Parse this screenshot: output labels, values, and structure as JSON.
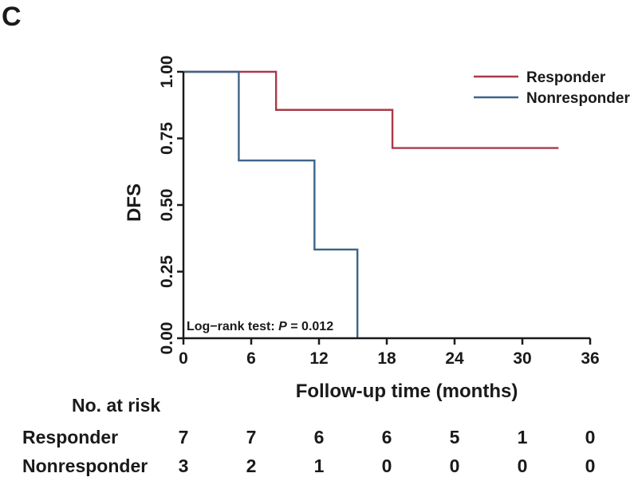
{
  "panel_label": "C",
  "chart_data": {
    "type": "line",
    "subtype": "kaplan-meier step curve",
    "title": "",
    "xlabel": "Follow-up time (months)",
    "ylabel": "DFS",
    "xlim": [
      0,
      36
    ],
    "ylim": [
      0,
      1
    ],
    "x_ticks": [
      0,
      6,
      12,
      18,
      24,
      30,
      36
    ],
    "x_tick_labels": [
      "0",
      "6",
      "12",
      "18",
      "24",
      "30",
      "36"
    ],
    "y_ticks": [
      0,
      0.25,
      0.5,
      0.75,
      1.0
    ],
    "y_tick_labels": [
      "0.00",
      "0.25",
      "0.50",
      "0.75",
      "1.00"
    ],
    "grid": false,
    "legend_position": "top-right",
    "series": [
      {
        "name": "Responder",
        "color": "#a83a4a",
        "x": [
          0,
          8.2,
          18.5,
          33.2
        ],
        "y": [
          1.0,
          0.857,
          0.714,
          0.714
        ]
      },
      {
        "name": "Nonresponder",
        "color": "#3d6489",
        "x": [
          0,
          4.9,
          11.6,
          15.4
        ],
        "y": [
          1.0,
          0.667,
          0.333,
          0.0
        ]
      }
    ],
    "annotation": {
      "prefix": "Log−rank test: ",
      "p_symbol": "P",
      "suffix": " = 0.012"
    },
    "risk_table": {
      "title": "No. at risk",
      "rows": [
        {
          "name": "Responder",
          "values": [
            "7",
            "7",
            "6",
            "6",
            "5",
            "1",
            "0"
          ]
        },
        {
          "name": "Nonresponder",
          "values": [
            "3",
            "2",
            "1",
            "0",
            "0",
            "0",
            "0"
          ]
        }
      ]
    }
  }
}
